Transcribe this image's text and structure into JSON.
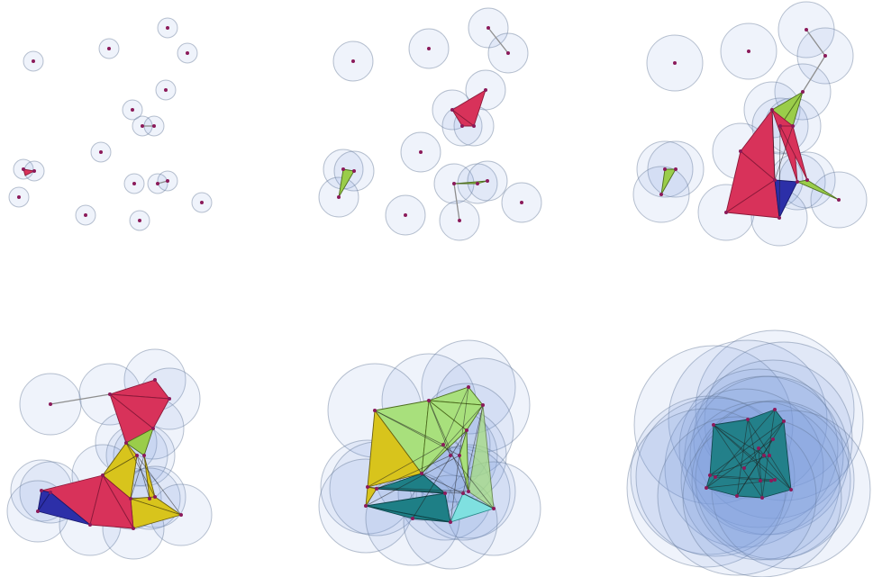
{
  "colors": {
    "disk_fill": "#dbe6f6",
    "disk_stroke": "#8c9ab5",
    "vertex": "#8b1a5a",
    "edge": "#8e8e8e",
    "triangle_red": "#d8325a",
    "triangle_green": "#9acd4a",
    "triangle_blue": "#2c2fa8",
    "triangle_yellow": "#d8c41c",
    "triangle_teal": "#1e7f86",
    "triangle_lightgreen": "#a8e07c",
    "triangle_cyan": "#7fe0e0"
  },
  "panels": [
    {
      "id": "panel-1"
    },
    {
      "id": "panel-2"
    },
    {
      "id": "panel-3"
    },
    {
      "id": "panel-4"
    },
    {
      "id": "panel-5"
    },
    {
      "id": "panel-6"
    }
  ]
}
